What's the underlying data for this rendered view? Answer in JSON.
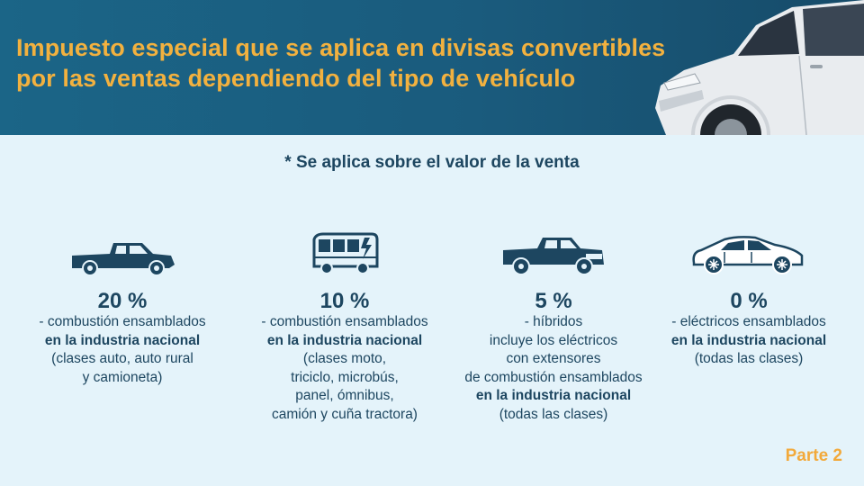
{
  "header": {
    "title_line1": "Impuesto especial que se aplica en divisas convertibles",
    "title_line2": "por las ventas dependiendo del tipo de vehículo"
  },
  "note": "* Se aplica sobre el valor de la venta",
  "columns": [
    {
      "icon": "pickup-truck-icon",
      "percent": "20 %",
      "lines": [
        {
          "text": "- combustión ensamblados",
          "bold": false
        },
        {
          "text": "en la industria nacional",
          "bold": true
        },
        {
          "text": "(clases auto, auto rural",
          "bold": false
        },
        {
          "text": "y camioneta)",
          "bold": false
        }
      ]
    },
    {
      "icon": "electric-bus-icon",
      "percent": "10 %",
      "lines": [
        {
          "text": "- combustión ensamblados",
          "bold": false
        },
        {
          "text": "en la industria nacional",
          "bold": true
        },
        {
          "text": "(clases moto,",
          "bold": false
        },
        {
          "text": "triciclo, microbús,",
          "bold": false
        },
        {
          "text": "panel, ómnibus,",
          "bold": false
        },
        {
          "text": "camión y cuña tractora)",
          "bold": false
        }
      ]
    },
    {
      "icon": "hybrid-pickup-icon",
      "percent": "5 %",
      "lines": [
        {
          "text": "- híbridos",
          "bold": false
        },
        {
          "text": "incluye los eléctricos",
          "bold": false
        },
        {
          "text": "con extensores",
          "bold": false
        },
        {
          "text": "de combustión ensamblados",
          "bold": false
        },
        {
          "text": "en la industria nacional",
          "bold": true
        },
        {
          "text": "(todas las clases)",
          "bold": false
        }
      ]
    },
    {
      "icon": "electric-car-icon",
      "percent": "0 %",
      "lines": [
        {
          "text": "- eléctricos ensamblados",
          "bold": false
        },
        {
          "text": "en la industria nacional",
          "bold": true
        },
        {
          "text": "(todas las clases)",
          "bold": false
        }
      ]
    }
  ],
  "footer": "Parte 2",
  "colors": {
    "header_bg": "#1a5b7d",
    "title": "#f2b13f",
    "body_bg": "#e4f3fa",
    "text": "#1d4660",
    "footer": "#f2a93a"
  }
}
